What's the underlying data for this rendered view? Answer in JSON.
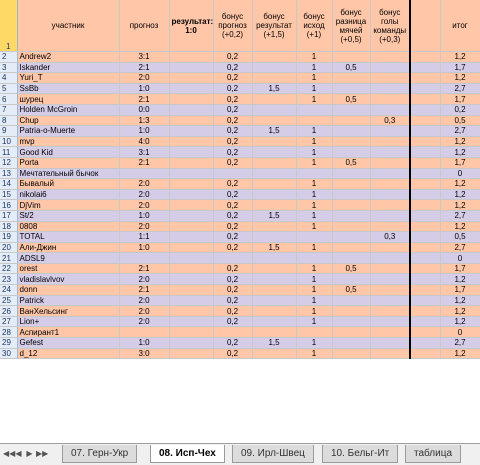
{
  "header": {
    "row_num": "1",
    "participant": "участник",
    "forecast": "прогноз",
    "result": "результат: 1:0",
    "bonus_forecast": "бонус прогноз (+0,2)",
    "bonus_result": "бонус результат (+1,5)",
    "bonus_outcome": "бонус исход (+1)",
    "bonus_goal_diff": "бонус разница мячей (+0,5)",
    "bonus_team_goals": "бонус голы команды (+0,3)",
    "total": "итог"
  },
  "rows": [
    {
      "n": "2",
      "name": "Andrew2",
      "f": "3:1",
      "bp": "0,2",
      "br": "",
      "bo": "1",
      "bd": "",
      "bt": "",
      "tot": "1,2"
    },
    {
      "n": "3",
      "name": "Iskander",
      "f": "2:1",
      "bp": "0,2",
      "br": "",
      "bo": "1",
      "bd": "0,5",
      "bt": "",
      "tot": "1,7"
    },
    {
      "n": "4",
      "name": "Yuri_T",
      "f": "2:0",
      "bp": "0,2",
      "br": "",
      "bo": "1",
      "bd": "",
      "bt": "",
      "tot": "1,2"
    },
    {
      "n": "5",
      "name": "SsBb",
      "f": "1:0",
      "bp": "0,2",
      "br": "1,5",
      "bo": "1",
      "bd": "",
      "bt": "",
      "tot": "2,7"
    },
    {
      "n": "6",
      "name": "шурец",
      "f": "2:1",
      "bp": "0,2",
      "br": "",
      "bo": "1",
      "bd": "0,5",
      "bt": "",
      "tot": "1,7"
    },
    {
      "n": "7",
      "name": "Holden McGroin",
      "f": "0:0",
      "bp": "0,2",
      "br": "",
      "bo": "",
      "bd": "",
      "bt": "",
      "tot": "0,2"
    },
    {
      "n": "8",
      "name": "Chup",
      "f": "1:3",
      "bp": "0,2",
      "br": "",
      "bo": "",
      "bd": "",
      "bt": "0,3",
      "tot": "0,5"
    },
    {
      "n": "9",
      "name": "Patria-o-Muerte",
      "f": "1:0",
      "bp": "0,2",
      "br": "1,5",
      "bo": "1",
      "bd": "",
      "bt": "",
      "tot": "2,7"
    },
    {
      "n": "10",
      "name": "mvp",
      "f": "4:0",
      "bp": "0,2",
      "br": "",
      "bo": "1",
      "bd": "",
      "bt": "",
      "tot": "1,2"
    },
    {
      "n": "11",
      "name": "Good Kid",
      "f": "3:1",
      "bp": "0,2",
      "br": "",
      "bo": "1",
      "bd": "",
      "bt": "",
      "tot": "1,2"
    },
    {
      "n": "12",
      "name": "Porta",
      "f": "2:1",
      "bp": "0,2",
      "br": "",
      "bo": "1",
      "bd": "0,5",
      "bt": "",
      "tot": "1,7"
    },
    {
      "n": "13",
      "name": "Мечтательный бычок",
      "f": "",
      "bp": "",
      "br": "",
      "bo": "",
      "bd": "",
      "bt": "",
      "tot": "0"
    },
    {
      "n": "14",
      "name": "Бывалый",
      "f": "2:0",
      "bp": "0,2",
      "br": "",
      "bo": "1",
      "bd": "",
      "bt": "",
      "tot": "1,2"
    },
    {
      "n": "15",
      "name": "nikolai6",
      "f": "2:0",
      "bp": "0,2",
      "br": "",
      "bo": "1",
      "bd": "",
      "bt": "",
      "tot": "1,2"
    },
    {
      "n": "16",
      "name": "DjVim",
      "f": "2:0",
      "bp": "0,2",
      "br": "",
      "bo": "1",
      "bd": "",
      "bt": "",
      "tot": "1,2"
    },
    {
      "n": "17",
      "name": "St/2",
      "f": "1:0",
      "bp": "0,2",
      "br": "1,5",
      "bo": "1",
      "bd": "",
      "bt": "",
      "tot": "2,7"
    },
    {
      "n": "18",
      "name": "0808",
      "f": "2:0",
      "bp": "0,2",
      "br": "",
      "bo": "1",
      "bd": "",
      "bt": "",
      "tot": "1,2"
    },
    {
      "n": "19",
      "name": "TOTAL",
      "f": "1:1",
      "bp": "0,2",
      "br": "",
      "bo": "",
      "bd": "",
      "bt": "0,3",
      "tot": "0,5"
    },
    {
      "n": "20",
      "name": "Али-Джин",
      "f": "1:0",
      "bp": "0,2",
      "br": "1,5",
      "bo": "1",
      "bd": "",
      "bt": "",
      "tot": "2,7"
    },
    {
      "n": "21",
      "name": "ADSL9",
      "f": "",
      "bp": "",
      "br": "",
      "bo": "",
      "bd": "",
      "bt": "",
      "tot": "0"
    },
    {
      "n": "22",
      "name": "orest",
      "f": "2:1",
      "bp": "0,2",
      "br": "",
      "bo": "1",
      "bd": "0,5",
      "bt": "",
      "tot": "1,7"
    },
    {
      "n": "23",
      "name": "vladislavlvov",
      "f": "2:0",
      "bp": "0,2",
      "br": "",
      "bo": "1",
      "bd": "",
      "bt": "",
      "tot": "1,2"
    },
    {
      "n": "24",
      "name": "donn",
      "f": "2:1",
      "bp": "0,2",
      "br": "",
      "bo": "1",
      "bd": "0,5",
      "bt": "",
      "tot": "1,7"
    },
    {
      "n": "25",
      "name": "Patrick",
      "f": "2:0",
      "bp": "0,2",
      "br": "",
      "bo": "1",
      "bd": "",
      "bt": "",
      "tot": "1,2"
    },
    {
      "n": "26",
      "name": "ВанХельсинг",
      "f": "2:0",
      "bp": "0,2",
      "br": "",
      "bo": "1",
      "bd": "",
      "bt": "",
      "tot": "1,2"
    },
    {
      "n": "27",
      "name": "Lion+",
      "f": "2:0",
      "bp": "0,2",
      "br": "",
      "bo": "1",
      "bd": "",
      "bt": "",
      "tot": "1,2"
    },
    {
      "n": "28",
      "name": "Аспирант1",
      "f": "",
      "bp": "",
      "br": "",
      "bo": "",
      "bd": "",
      "bt": "",
      "tot": "0"
    },
    {
      "n": "29",
      "name": "Gefest",
      "f": "1:0",
      "bp": "0,2",
      "br": "1,5",
      "bo": "1",
      "bd": "",
      "bt": "",
      "tot": "2,7"
    },
    {
      "n": "30",
      "name": "d_12",
      "f": "3:0",
      "bp": "0,2",
      "br": "",
      "bo": "1",
      "bd": "",
      "bt": "",
      "tot": "1,2"
    }
  ],
  "tabs": {
    "nav": [
      "◀◀",
      "◀",
      "▶",
      "▶▶"
    ],
    "items": [
      "07. Герн-Укр",
      "08. Исп-Чех",
      "09. Ирл-Швец",
      "10. Бельг-Ит",
      "таблица"
    ],
    "active_index": 1
  }
}
